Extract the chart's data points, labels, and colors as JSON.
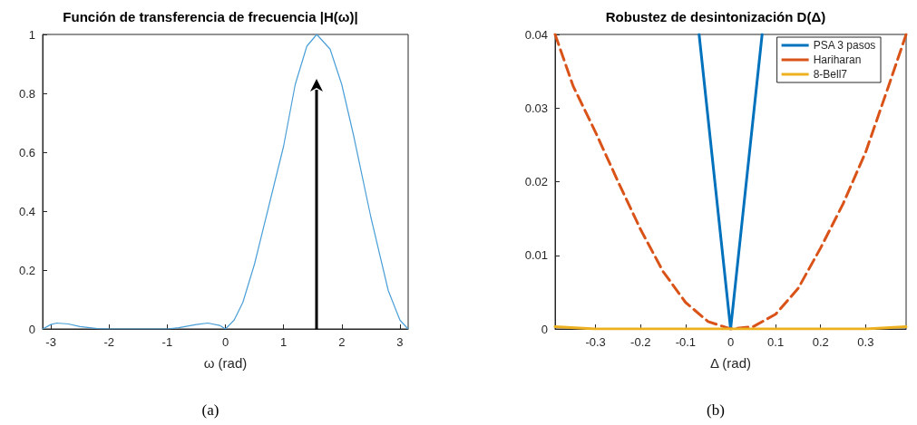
{
  "chart_data": [
    {
      "type": "line",
      "title": "Función de transferencia de frecuencia |H(ω)|",
      "xlabel": "ω (rad)",
      "annotations": [
        "(a)"
      ],
      "xlim": [
        -3.1416,
        3.1416
      ],
      "xticks": [
        -3,
        -2,
        -1,
        0,
        1,
        2,
        3
      ],
      "ylim": [
        0,
        1
      ],
      "yticks": [
        0,
        0.2,
        0.4,
        0.6,
        0.8,
        1
      ],
      "grid": false,
      "legend": false,
      "marker": "none",
      "ref_lines": [
        {
          "axis": "x",
          "value": 1.57
        }
      ],
      "series": [
        {
          "color": "#4a9fd8",
          "x": [
            -3.14,
            -3.0,
            -2.9,
            -2.7,
            -2.5,
            -2.2,
            -2.0,
            -1.5,
            -1.0,
            -0.8,
            -0.5,
            -0.3,
            -0.1,
            0,
            0.15,
            0.3,
            0.5,
            0.75,
            1.0,
            1.2,
            1.4,
            1.57,
            1.8,
            2.0,
            2.2,
            2.5,
            2.8,
            3.0,
            3.14
          ],
          "values": [
            0,
            0.015,
            0.02,
            0.017,
            0.008,
            0.001,
            0,
            0,
            0,
            0.004,
            0.015,
            0.02,
            0.012,
            0,
            0.03,
            0.09,
            0.22,
            0.42,
            0.62,
            0.83,
            0.96,
            1.0,
            0.95,
            0.83,
            0.66,
            0.38,
            0.13,
            0.03,
            0
          ]
        }
      ]
    },
    {
      "type": "line",
      "title": "Robustez de desintonización D(Δ)",
      "xlabel": "Δ (rad)",
      "annotations": [
        "(b)"
      ],
      "xlim": [
        -0.39,
        0.39
      ],
      "xticks": [
        -0.3,
        -0.2,
        -0.1,
        0,
        0.1,
        0.2,
        0.3
      ],
      "ylim": [
        0,
        0.04
      ],
      "yticks": [
        0,
        0.01,
        0.02,
        0.03,
        0.04
      ],
      "grid": false,
      "legend": "top right",
      "marker": "none",
      "series": [
        {
          "name": "PSA 3 pasos",
          "color": "#0072bd",
          "line_style": "solid",
          "x": [
            -0.07,
            0,
            0.07
          ],
          "values": [
            0.04,
            0,
            0.04
          ]
        },
        {
          "name": "Hariharan",
          "color": "#d95319",
          "line_style": "dashed",
          "x": [
            -0.39,
            -0.35,
            -0.3,
            -0.25,
            -0.2,
            -0.15,
            -0.1,
            -0.05,
            0,
            0.05,
            0.1,
            0.15,
            0.2,
            0.25,
            0.3,
            0.35,
            0.39
          ],
          "values": [
            0.04,
            0.033,
            0.0267,
            0.02,
            0.0135,
            0.0078,
            0.0036,
            0.001,
            0,
            0.0003,
            0.002,
            0.0055,
            0.011,
            0.017,
            0.024,
            0.0328,
            0.04
          ]
        },
        {
          "name": "8-Bell7",
          "color": "#edb120",
          "line_style": "solid",
          "x": [
            -0.39,
            -0.3,
            0,
            0.3,
            0.39
          ],
          "values": [
            0.0003,
            0,
            0,
            0,
            0.0003
          ]
        }
      ]
    }
  ]
}
